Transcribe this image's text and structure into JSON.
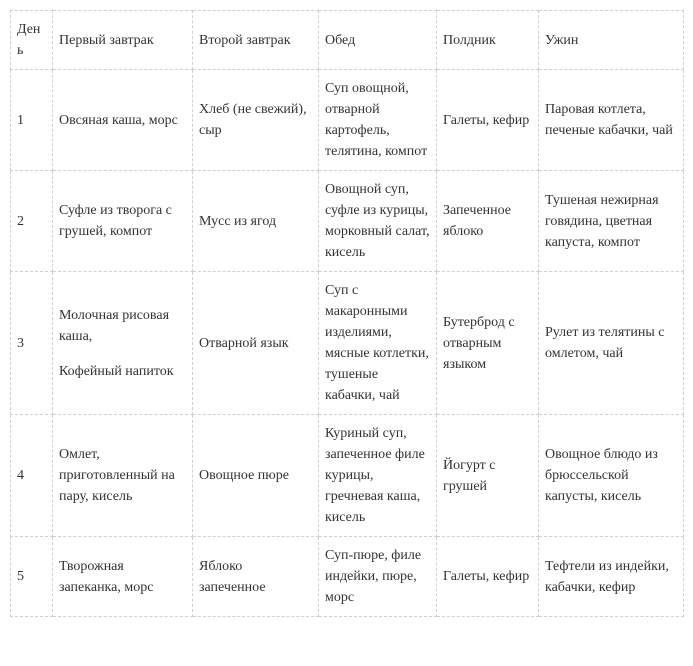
{
  "columns": [
    "День",
    "Первый завтрак",
    "Второй завтрак",
    "Обед",
    "Полдник",
    "Ужин"
  ],
  "rows": [
    {
      "day": "1",
      "b1": "Овсяная каша, морс",
      "b2": "Хлеб (не свежий), сыр",
      "lunch": "Суп овощной, отварной картофель, телятина, компот",
      "snack": "Галеты, кефир",
      "dinner": "Паровая котлета, печеные кабачки, чай"
    },
    {
      "day": "2",
      "b1": "Суфле из творога с грушей, компот",
      "b2": "Мусс из ягод",
      "lunch": "Овощной суп, суфле из курицы, морковный салат, кисель",
      "snack": "Запеченное яблоко",
      "dinner": "Тушеная нежирная говядина, цветная капуста, компот"
    },
    {
      "day": "3",
      "b1_a": "Молочная рисовая каша,",
      "b1_b": "Кофейный напиток",
      "b2": "Отварной язык",
      "lunch": "Суп с макаронными изделиями, мясные котлетки, тушеные кабачки, чай",
      "snack": "Бутерброд с отварным языком",
      "dinner": "Рулет из телятины с омлетом, чай"
    },
    {
      "day": "4",
      "b1": "Омлет, приготовленный на пару, кисель",
      "b2": "Овощное пюре",
      "lunch": "Куриный суп, запеченное филе курицы, гречневая каша, кисель",
      "snack": "Йогурт с грушей",
      "dinner": "Овощное блюдо из брюссельской капусты, кисель"
    },
    {
      "day": "5",
      "b1": "Творожная запеканка, морс",
      "b2": "Яблоко запеченное",
      "lunch": "Суп-пюре, филе индейки, пюре, морс",
      "snack": "Галеты, кефир",
      "dinner": "Тефтели из индейки, кабачки, кефир"
    }
  ]
}
